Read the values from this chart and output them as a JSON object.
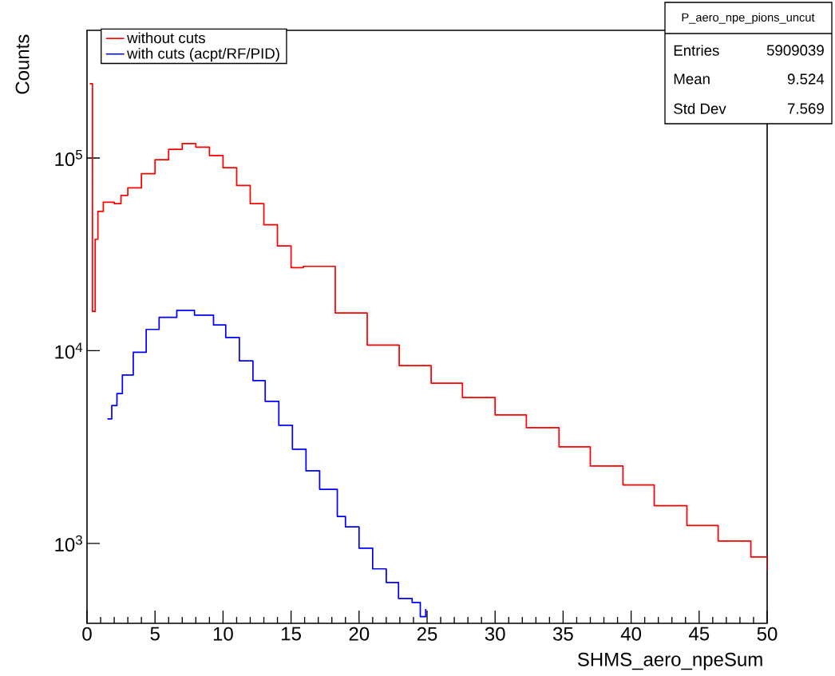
{
  "chart_data": {
    "type": "step",
    "xlabel": "SHMS_aero_npeSum",
    "ylabel": "Counts",
    "xlim": [
      0,
      50
    ],
    "ylim": [
      385,
      460000
    ],
    "log": "y",
    "legend": "top left",
    "grid": false,
    "xticks": [
      0,
      5,
      10,
      15,
      20,
      25,
      30,
      35,
      40,
      45,
      50
    ],
    "yticks": [
      {
        "value": 1000,
        "label": "10$^{3}$"
      },
      {
        "value": 10000,
        "label": "10$^{4}$"
      },
      {
        "value": 100000,
        "label": "10$^{5}$"
      }
    ],
    "series": [
      {
        "name": "without cuts",
        "color": "#ff0000",
        "x": [
          0.2,
          0.4,
          0.6,
          0.8,
          1.2,
          2,
          2.5,
          3,
          4,
          5,
          6,
          7,
          8,
          9,
          10,
          11,
          12,
          13,
          14,
          15,
          15.9,
          18.25,
          20.6,
          22.95,
          25.3,
          27.6,
          30.0,
          32.3,
          34.7,
          37.0,
          39.4,
          41.7,
          44.1,
          46.4,
          48.8,
          50
        ],
        "values": [
          243000,
          16000,
          37900,
          52800,
          59000,
          58000,
          64000,
          70000,
          83000,
          98000,
          111000,
          119000,
          114000,
          103000,
          89000,
          72000,
          58000,
          45000,
          35000,
          27000,
          27400,
          15700,
          10700,
          8370,
          6790,
          5720,
          4640,
          3990,
          3170,
          2520,
          2010,
          1570,
          1240,
          1030,
          851,
          730
        ]
      },
      {
        "name": "with cuts (acpt/RF/PID)",
        "color": "#0000ff",
        "x": [
          1.5,
          1.82,
          2.2,
          2.6,
          3.4,
          4.35,
          5.3,
          6.6,
          7.9,
          9.3,
          10.2,
          11.2,
          12.2,
          13.1,
          14.1,
          15.1,
          16.1,
          17.1,
          18.4,
          19.0,
          20.0,
          21.0,
          22.0,
          22.9,
          23.9,
          24.5,
          24.9
        ],
        "values": [
          4430,
          5200,
          6000,
          7480,
          9810,
          12900,
          14900,
          16200,
          15300,
          13600,
          11700,
          8870,
          7000,
          5460,
          4100,
          3080,
          2380,
          1910,
          1380,
          1220,
          945,
          738,
          627,
          518,
          494,
          417,
          457
        ]
      }
    ],
    "annotations": [
      "P_aero_npe_pions_uncut",
      "Entries",
      "5909039",
      "Mean",
      "9.524",
      "Std Dev",
      "7.569"
    ]
  }
}
